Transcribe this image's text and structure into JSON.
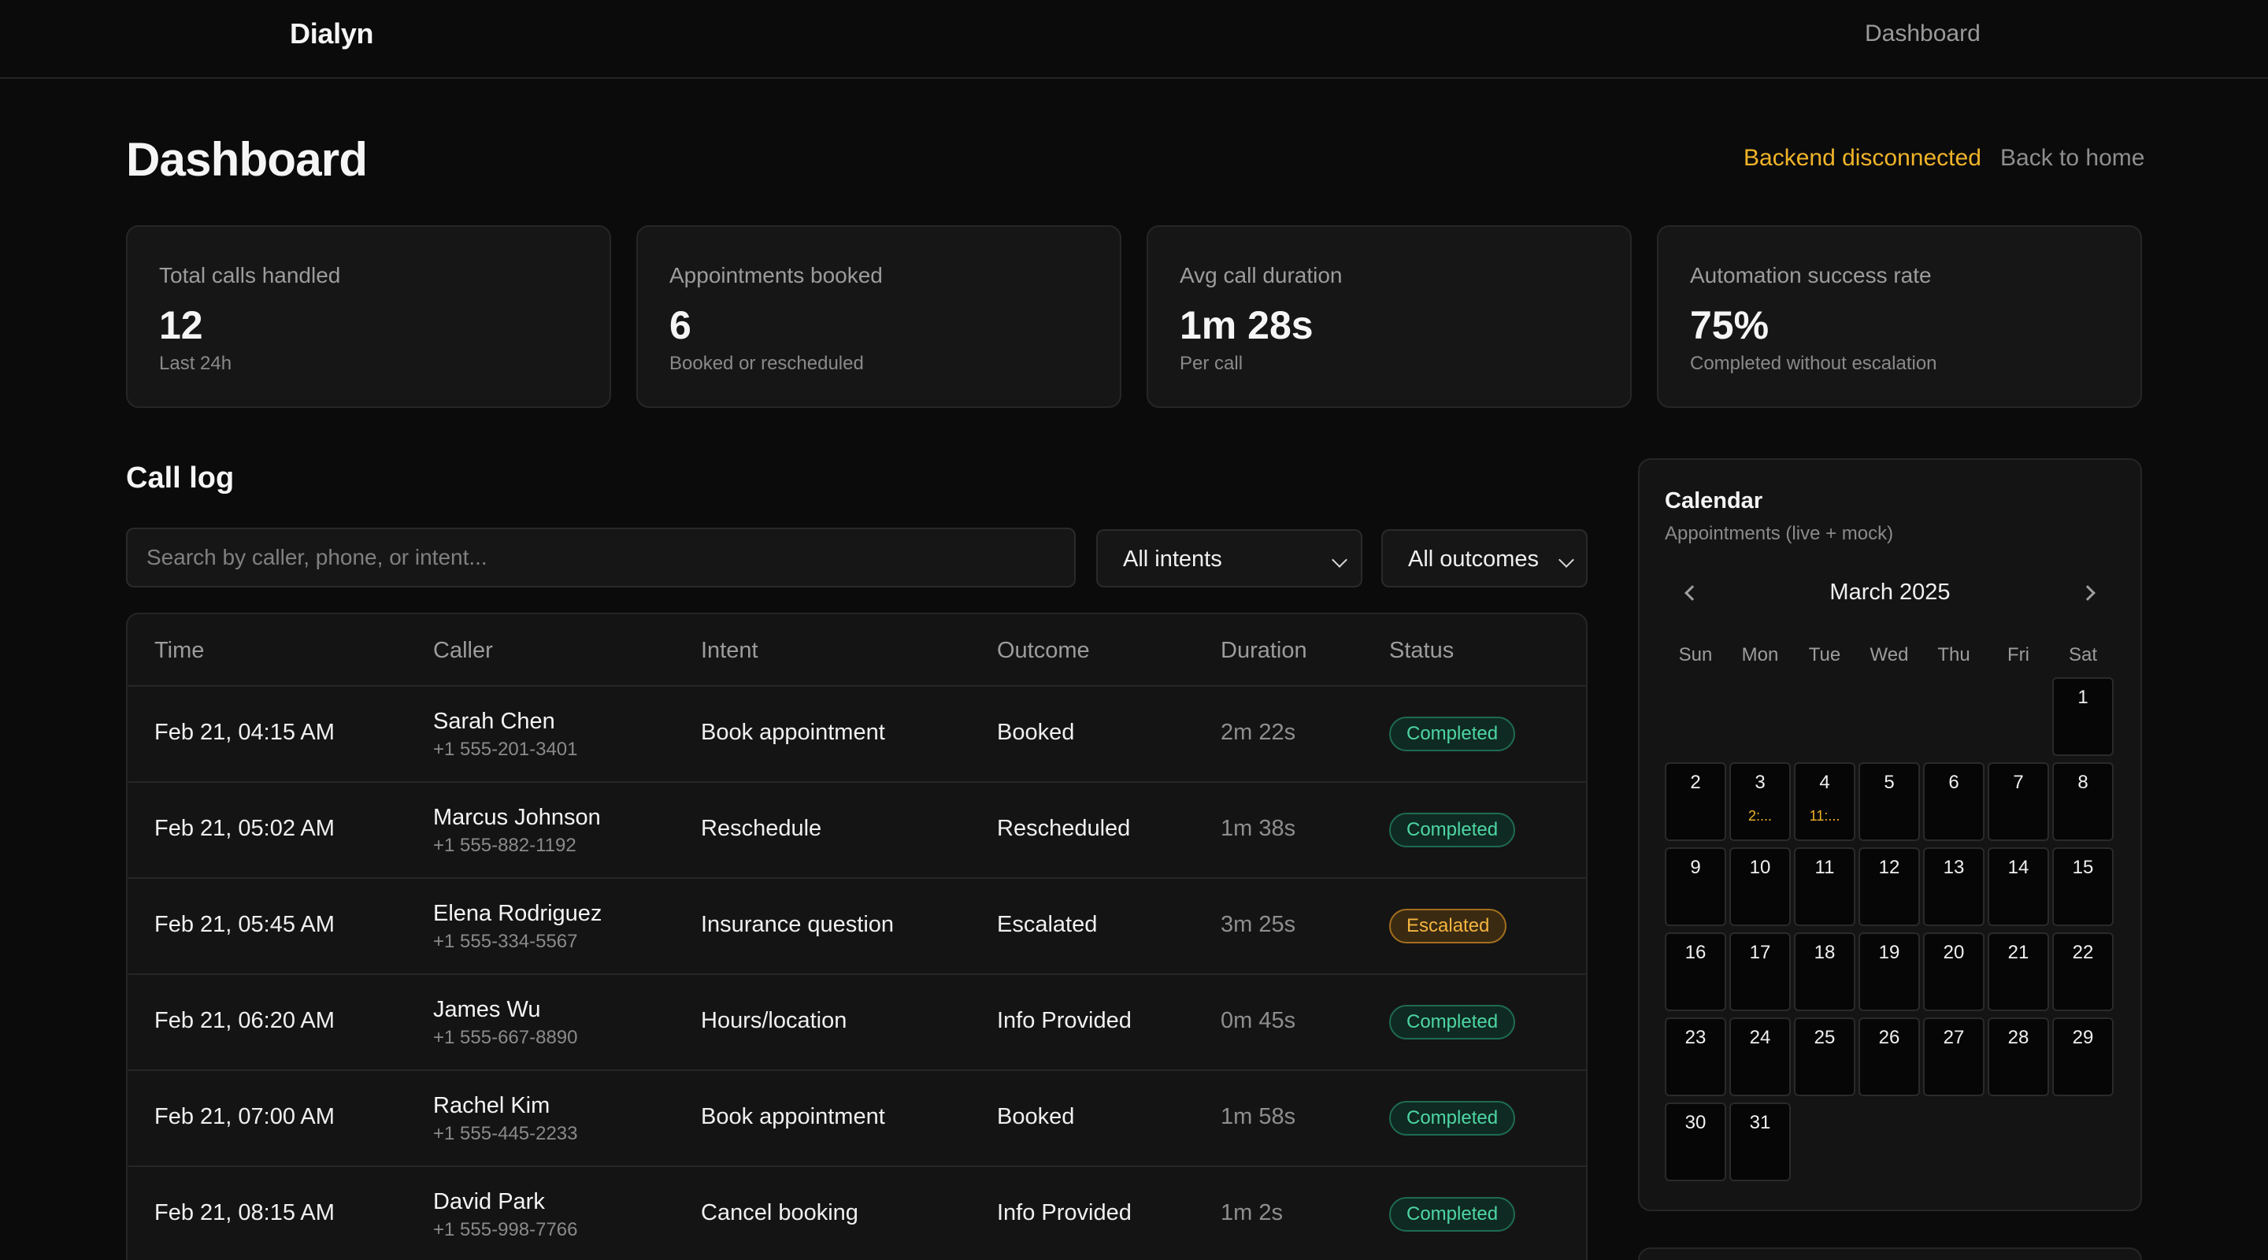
{
  "nav": {
    "brand": "Dialyn",
    "dashboard_link": "Dashboard"
  },
  "header": {
    "title": "Dashboard",
    "backend_status": "Backend disconnected",
    "back_link": "Back to home"
  },
  "colors": {
    "background": "#0b0b0b",
    "card": "#161616",
    "warning": "#f0b429",
    "success": "#4ed6a4",
    "escalated": "#f5b43f"
  },
  "stats": [
    {
      "label": "Total calls handled",
      "value": "12",
      "sub": "Last 24h"
    },
    {
      "label": "Appointments booked",
      "value": "6",
      "sub": "Booked or rescheduled"
    },
    {
      "label": "Avg call duration",
      "value": "1m 28s",
      "sub": "Per call"
    },
    {
      "label": "Automation success rate",
      "value": "75%",
      "sub": "Completed without escalation"
    }
  ],
  "call_log": {
    "title": "Call log",
    "search_placeholder": "Search by caller, phone, or intent...",
    "intent_filter": "All intents",
    "outcome_filter": "All outcomes",
    "columns": [
      "Time",
      "Caller",
      "Intent",
      "Outcome",
      "Duration",
      "Status"
    ],
    "rows": [
      {
        "time": "Feb 21, 04:15 AM",
        "caller": "Sarah Chen",
        "phone": "+1 555-201-3401",
        "intent": "Book appointment",
        "outcome": "Booked",
        "duration": "2m 22s",
        "status": "Completed",
        "status_kind": "completed"
      },
      {
        "time": "Feb 21, 05:02 AM",
        "caller": "Marcus Johnson",
        "phone": "+1 555-882-1192",
        "intent": "Reschedule",
        "outcome": "Rescheduled",
        "duration": "1m 38s",
        "status": "Completed",
        "status_kind": "completed"
      },
      {
        "time": "Feb 21, 05:45 AM",
        "caller": "Elena Rodriguez",
        "phone": "+1 555-334-5567",
        "intent": "Insurance question",
        "outcome": "Escalated",
        "duration": "3m 25s",
        "status": "Escalated",
        "status_kind": "escalated"
      },
      {
        "time": "Feb 21, 06:20 AM",
        "caller": "James Wu",
        "phone": "+1 555-667-8890",
        "intent": "Hours/location",
        "outcome": "Info Provided",
        "duration": "0m 45s",
        "status": "Completed",
        "status_kind": "completed"
      },
      {
        "time": "Feb 21, 07:00 AM",
        "caller": "Rachel Kim",
        "phone": "+1 555-445-2233",
        "intent": "Book appointment",
        "outcome": "Booked",
        "duration": "1m 58s",
        "status": "Completed",
        "status_kind": "completed"
      },
      {
        "time": "Feb 21, 08:15 AM",
        "caller": "David Park",
        "phone": "+1 555-998-7766",
        "intent": "Cancel booking",
        "outcome": "Info Provided",
        "duration": "1m 2s",
        "status": "Completed",
        "status_kind": "completed"
      }
    ]
  },
  "calendar": {
    "title": "Calendar",
    "subtitle": "Appointments (live + mock)",
    "month_label": "March 2025",
    "prev_icon": "chevron-left-icon",
    "next_icon": "chevron-right-icon",
    "weekdays": [
      "Sun",
      "Mon",
      "Tue",
      "Wed",
      "Thu",
      "Fri",
      "Sat"
    ],
    "first_weekday": 6,
    "days_in_month": 31,
    "events": {
      "3": "2:...",
      "4": "11:..."
    }
  }
}
